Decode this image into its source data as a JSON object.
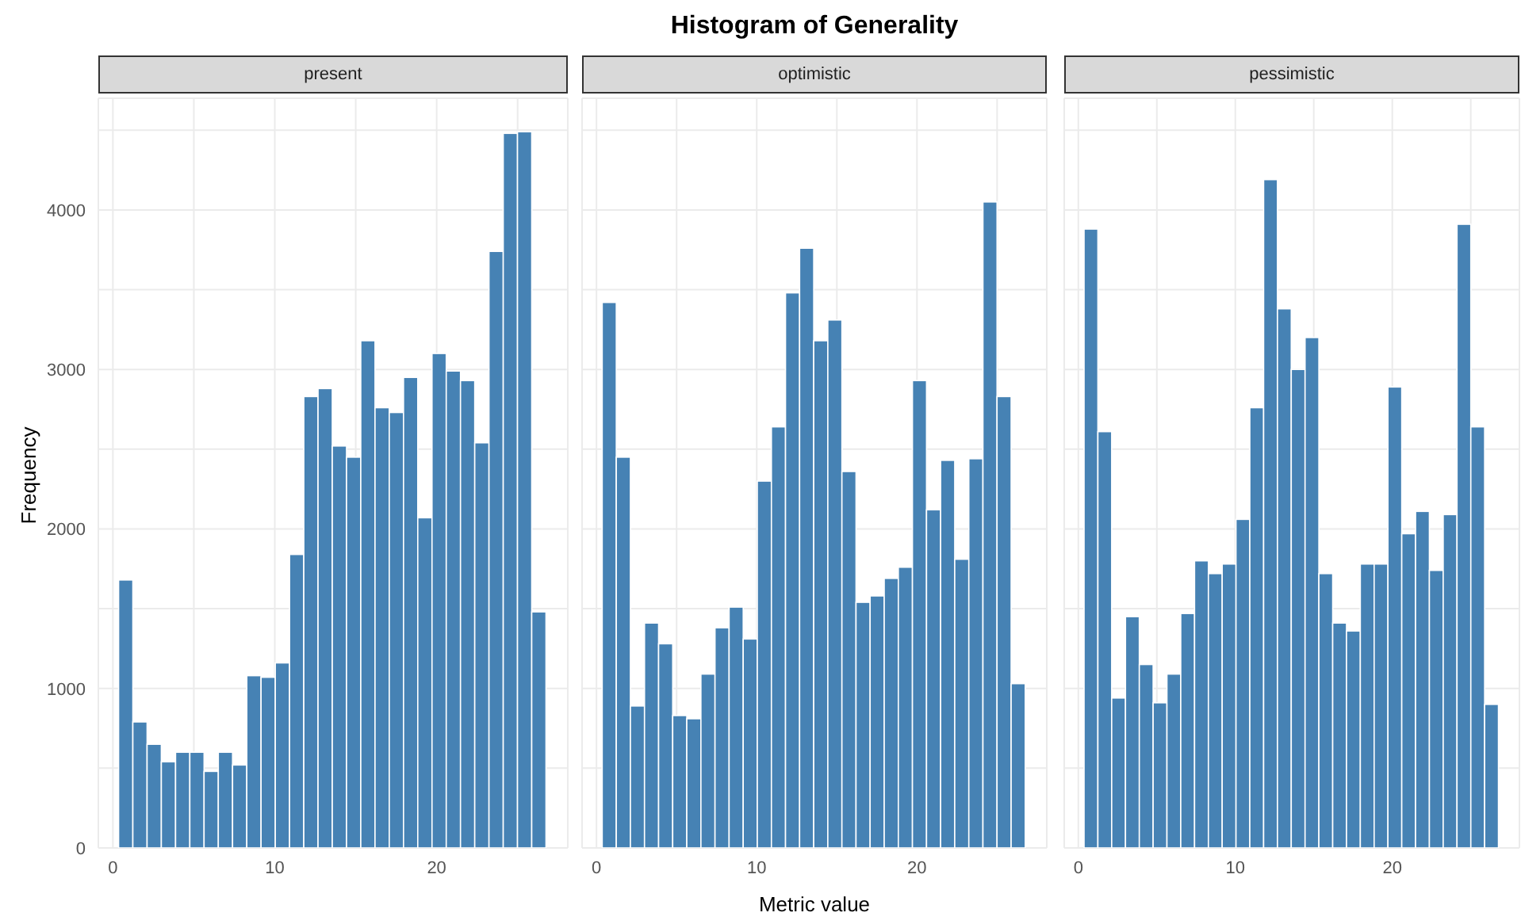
{
  "chart_data": [
    {
      "type": "histogram",
      "subtitle": "present",
      "ylabel": "Frequency",
      "color": "#4682b4",
      "bins": [
        0.4,
        1.28,
        2.16,
        3.04,
        3.92,
        4.8,
        5.68,
        6.56,
        7.44,
        8.32,
        9.2,
        10.08,
        10.96,
        11.84,
        12.72,
        13.6,
        14.48,
        15.36,
        16.24,
        17.12,
        18.0,
        18.88,
        19.76,
        20.64,
        21.52,
        22.4,
        23.28,
        24.16,
        25.04,
        25.92,
        26.8
      ],
      "values": [
        1680,
        790,
        650,
        540,
        600,
        600,
        480,
        600,
        520,
        1080,
        1070,
        1160,
        1840,
        2830,
        2880,
        2520,
        2450,
        3180,
        2760,
        2730,
        2950,
        2070,
        3100,
        2990,
        2930,
        2540,
        3740,
        4480,
        4490,
        1480
      ],
      "xlim": [
        -0.9,
        28.1
      ],
      "xticks": [
        0,
        {
          "value": 5,
          "label": null
        },
        10,
        {
          "value": 15,
          "label": null
        },
        20,
        {
          "value": 25,
          "label": null
        }
      ],
      "ylim": [
        0,
        4700
      ],
      "yticks": [
        0,
        {
          "value": 500,
          "label": null
        },
        1000,
        {
          "value": 1500,
          "label": null
        },
        2000,
        {
          "value": 2500,
          "label": null
        },
        3000,
        {
          "value": 3500,
          "label": null
        },
        4000,
        {
          "value": 4500,
          "label": null
        }
      ],
      "grid": true
    },
    {
      "type": "histogram",
      "title": "Histogram of Generality",
      "subtitle": "optimistic",
      "xlabel": "Metric value",
      "color": "#4682b4",
      "bins": [
        0.4,
        1.28,
        2.16,
        3.04,
        3.92,
        4.8,
        5.68,
        6.56,
        7.44,
        8.32,
        9.2,
        10.08,
        10.96,
        11.84,
        12.72,
        13.6,
        14.48,
        15.36,
        16.24,
        17.12,
        18.0,
        18.88,
        19.76,
        20.64,
        21.52,
        22.4,
        23.28,
        24.16,
        25.04,
        25.92,
        26.8
      ],
      "values": [
        3420,
        2450,
        890,
        1410,
        1280,
        830,
        810,
        1090,
        1380,
        1510,
        1310,
        2300,
        2640,
        3480,
        3760,
        3180,
        3310,
        2360,
        1540,
        1580,
        1690,
        1760,
        2930,
        2120,
        2430,
        1810,
        2440,
        4050,
        2830,
        1030
      ],
      "xlim": [
        -0.9,
        28.1
      ],
      "xticks": [
        0,
        {
          "value": 5,
          "label": null
        },
        10,
        {
          "value": 15,
          "label": null
        },
        20,
        {
          "value": 25,
          "label": null
        }
      ],
      "ylim": [
        0,
        4700
      ],
      "yticks": [
        0,
        {
          "value": 500,
          "label": null
        },
        1000,
        {
          "value": 1500,
          "label": null
        },
        2000,
        {
          "value": 2500,
          "label": null
        },
        3000,
        {
          "value": 3500,
          "label": null
        },
        4000,
        {
          "value": 4500,
          "label": null
        }
      ],
      "grid": true,
      "tick_labels": "x"
    },
    {
      "type": "histogram",
      "subtitle": "pessimistic",
      "color": "#4682b4",
      "bins": [
        0.4,
        1.28,
        2.16,
        3.04,
        3.92,
        4.8,
        5.68,
        6.56,
        7.44,
        8.32,
        9.2,
        10.08,
        10.96,
        11.84,
        12.72,
        13.6,
        14.48,
        15.36,
        16.24,
        17.12,
        18.0,
        18.88,
        19.76,
        20.64,
        21.52,
        22.4,
        23.28,
        24.16,
        25.04,
        25.92,
        26.8
      ],
      "values": [
        3880,
        2610,
        940,
        1450,
        1150,
        910,
        1090,
        1470,
        1800,
        1720,
        1780,
        2060,
        2760,
        4190,
        3380,
        3000,
        3200,
        1720,
        1410,
        1360,
        1780,
        1780,
        2890,
        1970,
        2110,
        1740,
        2090,
        3910,
        2640,
        900
      ],
      "xlim": [
        -0.9,
        28.1
      ],
      "xticks": [
        0,
        {
          "value": 5,
          "label": null
        },
        10,
        {
          "value": 15,
          "label": null
        },
        20,
        {
          "value": 25,
          "label": null
        }
      ],
      "ylim": [
        0,
        4700
      ],
      "yticks": [
        0,
        {
          "value": 500,
          "label": null
        },
        1000,
        {
          "value": 1500,
          "label": null
        },
        2000,
        {
          "value": 2500,
          "label": null
        },
        3000,
        {
          "value": 3500,
          "label": null
        },
        4000,
        {
          "value": 4500,
          "label": null
        }
      ],
      "grid": true,
      "tick_labels": "x"
    }
  ]
}
